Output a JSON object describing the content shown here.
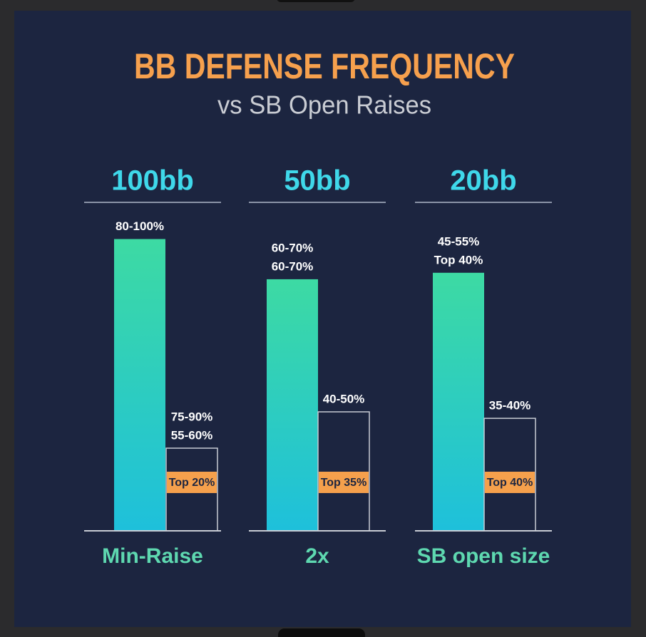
{
  "chart_data": {
    "type": "bar",
    "title": "BB DEFENSE FREQUENCY",
    "subtitle": "vs SB Open Raises",
    "ylim": [
      0,
      100
    ],
    "colors": [
      "#3ddaa3",
      "#1ec0db"
    ],
    "tag_color": "#f5a04c",
    "panels": [
      {
        "heading": "100bb",
        "category": "Min-Raise",
        "bars": [
          {
            "labels": [
              "80-100%"
            ],
            "value": 90
          },
          {
            "labels": [
              "75-90%",
              "55-60%"
            ],
            "value": 25.5,
            "tag": "Top 20%"
          }
        ]
      },
      {
        "heading": "50bb",
        "category": "2x",
        "bars": [
          {
            "labels": [
              "60-70%",
              "60-70%"
            ],
            "value": 77.6
          },
          {
            "labels": [
              "40-50%"
            ],
            "value": 36.7,
            "tag": "Top 35%"
          }
        ]
      },
      {
        "heading": "20bb",
        "category": "SB open size",
        "bars": [
          {
            "labels": [
              "45-55%",
              "Top 40%"
            ],
            "value": 79.6
          },
          {
            "labels": [
              "35-40%"
            ],
            "value": 34.7,
            "tag": "Top 40%"
          }
        ]
      }
    ]
  }
}
